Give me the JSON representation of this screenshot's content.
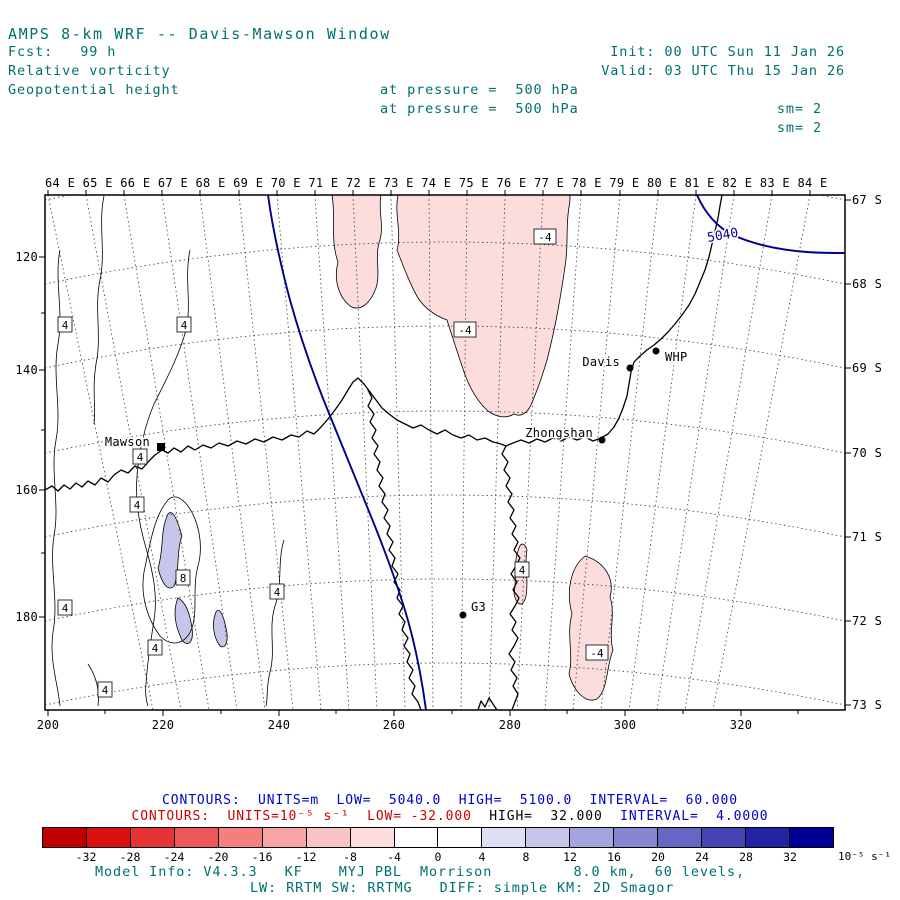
{
  "header": {
    "title": "AMPS 8-km WRF -- Davis-Mawson Window",
    "init_label": "Init: 00 UTC Sun 11 Jan 26",
    "fcst_label": "Fcst:   99 h",
    "valid_label": "Valid: 03 UTC Thu 15 Jan 26",
    "field1": "Relative vorticity",
    "field1_pressure": "at pressure =  500 hPa",
    "field1_sm": "sm= 2",
    "field2": "Geopotential height",
    "field2_pressure": "at pressure =  500 hPa",
    "field2_sm": "sm= 2"
  },
  "map": {
    "top_axis": "64 E 65 E 66 E 67 E 68 E 69 E 70 E 71 E 72 E 73 E 74 E 75 E 76 E 77 E 78 E 79 E 80 E 81 E 82 E 83 E 84 E",
    "right_axis": [
      "67 S",
      "68 S",
      "69 S",
      "70 S",
      "71 S",
      "72 S",
      "73 S"
    ],
    "left_axis": [
      "120",
      "140",
      "160",
      "180"
    ],
    "bottom_axis": [
      "200",
      "220",
      "240",
      "260",
      "280",
      "300",
      "320"
    ],
    "height_contour_label": "5040",
    "contour_labels": [
      "4",
      "4",
      "-4",
      "-4",
      "4",
      "4",
      "8",
      "4",
      "4",
      "4",
      "4",
      "4",
      "-4"
    ],
    "stations": [
      {
        "name": "Mawson"
      },
      {
        "name": "Davis"
      },
      {
        "name": "WHP"
      },
      {
        "name": "Zhongshan"
      },
      {
        "name": "G3"
      }
    ]
  },
  "legend": {
    "line1": "CONTOURS:  UNITS=m  LOW=  5040.0  HIGH=  5100.0  INTERVAL=  60.000",
    "line2_low": "CONTOURS:  UNITS=10⁻⁵ s⁻¹  LOW= -32.000",
    "line2_high": "  HIGH=  32.000",
    "line2_interval": "  INTERVAL=  4.0000",
    "colorbar": {
      "colors": [
        "#c00000",
        "#dc1010",
        "#e63434",
        "#ee5858",
        "#f47f7f",
        "#f8a4a4",
        "#fbc4c4",
        "#fcdcdc",
        "#ffffff",
        "#ffffff",
        "#dedef4",
        "#c6c6ea",
        "#a4a4de",
        "#8686d2",
        "#6666c4",
        "#4444b4",
        "#2222a4",
        "#000096"
      ],
      "tick_labels": [
        "-32",
        "-28",
        "-24",
        "-20",
        "-16",
        "-12",
        "-8",
        "-4",
        "0",
        "4",
        "8",
        "12",
        "16",
        "20",
        "24",
        "28",
        "32"
      ],
      "units": "10⁻⁵ s⁻¹"
    },
    "model_info_line1": "Model Info: V4.3.3   KF    MYJ PBL  Morrison         8.0 km,  60 levels,",
    "model_info_line2": "LW: RRTM SW: RRTMG   DIFF: simple KM: 2D Smagor"
  },
  "colors": {
    "header_text": "#007070",
    "height_contour": "#00008b",
    "negative_fill": "#fcdcdc",
    "positive_fill": "#c6c6ea",
    "legend_blue": "#0000cc",
    "legend_red": "#cc0000"
  }
}
